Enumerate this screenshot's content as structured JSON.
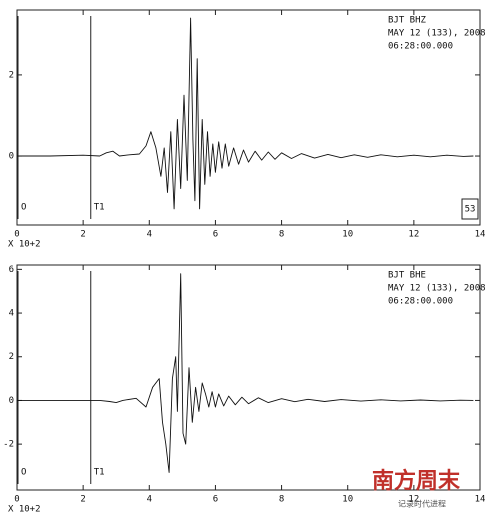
{
  "chart_data": [
    {
      "type": "line",
      "header": [
        "BJT  BHZ",
        "MAY 12 (133), 2008",
        "06:28:00.000"
      ],
      "x_label": "X 10+2",
      "box_label": "53",
      "markers": [
        {
          "label": "O",
          "x": 0
        },
        {
          "label": "T1",
          "x": 2.2
        }
      ],
      "xlim": [
        0,
        14
      ],
      "xticks": [
        0,
        2,
        4,
        6,
        8,
        10,
        12,
        14
      ],
      "ylim": [
        -1.7,
        3.6
      ],
      "yticks": [
        0,
        2
      ],
      "x": [
        0,
        1,
        2,
        2.5,
        2.7,
        2.9,
        3.1,
        3.4,
        3.7,
        3.9,
        4.05,
        4.2,
        4.35,
        4.45,
        4.55,
        4.65,
        4.75,
        4.85,
        4.95,
        5.05,
        5.15,
        5.25,
        5.32,
        5.38,
        5.45,
        5.52,
        5.6,
        5.68,
        5.76,
        5.84,
        5.92,
        6.0,
        6.1,
        6.2,
        6.3,
        6.4,
        6.55,
        6.7,
        6.85,
        7.0,
        7.2,
        7.4,
        7.6,
        7.8,
        8.0,
        8.3,
        8.6,
        9.0,
        9.4,
        9.8,
        10.2,
        10.6,
        11.0,
        11.5,
        12.0,
        12.5,
        13.0,
        13.5,
        13.8
      ],
      "series": [
        {
          "color": "#111111",
          "values": [
            0,
            0,
            0.02,
            0,
            0.08,
            0.12,
            0,
            0.03,
            0.05,
            0.25,
            0.6,
            0.2,
            -0.5,
            0.2,
            -0.9,
            0.6,
            -1.3,
            0.9,
            -0.8,
            1.5,
            -0.6,
            3.4,
            0.4,
            -1.1,
            2.4,
            -1.3,
            0.9,
            -0.7,
            0.6,
            -0.5,
            0.3,
            -0.4,
            0.35,
            -0.3,
            0.3,
            -0.25,
            0.2,
            -0.2,
            0.15,
            -0.15,
            0.12,
            -0.1,
            0.1,
            -0.08,
            0.08,
            -0.06,
            0.06,
            -0.05,
            0.04,
            -0.04,
            0.03,
            -0.03,
            0.03,
            -0.02,
            0.02,
            -0.02,
            0.02,
            -0.01,
            0
          ]
        }
      ]
    },
    {
      "type": "line",
      "header": [
        "BJT  BHE",
        "MAY 12 (133), 2008",
        "06:28:00.000"
      ],
      "x_label": "X 10+2",
      "markers": [
        {
          "label": "O",
          "x": 0
        },
        {
          "label": "T1",
          "x": 2.2
        }
      ],
      "xlim": [
        0,
        14
      ],
      "xticks": [
        0,
        2,
        4,
        6,
        8,
        10,
        12,
        14
      ],
      "ylim": [
        -4.1,
        6.2
      ],
      "yticks": [
        -2,
        0,
        2,
        4,
        6
      ],
      "x": [
        0,
        2,
        2.5,
        2.8,
        3.0,
        3.2,
        3.6,
        3.9,
        4.1,
        4.3,
        4.4,
        4.5,
        4.6,
        4.7,
        4.8,
        4.85,
        4.95,
        5.02,
        5.1,
        5.2,
        5.3,
        5.4,
        5.5,
        5.6,
        5.7,
        5.8,
        5.9,
        6.0,
        6.1,
        6.25,
        6.4,
        6.6,
        6.8,
        7.0,
        7.3,
        7.6,
        8.0,
        8.4,
        8.8,
        9.3,
        9.8,
        10.4,
        11.0,
        11.6,
        12.2,
        12.8,
        13.4,
        13.8
      ],
      "series": [
        {
          "color": "#111111",
          "values": [
            0,
            0,
            0,
            -0.05,
            -0.1,
            0,
            0.1,
            -0.3,
            0.6,
            1.0,
            -1.0,
            -2.0,
            -3.3,
            1.0,
            2.0,
            -0.5,
            5.8,
            -1.5,
            -2.0,
            1.5,
            -1.0,
            0.6,
            -0.5,
            0.8,
            0.3,
            -0.3,
            0.4,
            -0.3,
            0.3,
            -0.25,
            0.2,
            -0.2,
            0.15,
            -0.15,
            0.12,
            -0.1,
            0.08,
            -0.06,
            0.05,
            -0.05,
            0.04,
            -0.03,
            0.03,
            -0.02,
            0.02,
            -0.02,
            0.01,
            0
          ]
        }
      ]
    }
  ],
  "watermark": {
    "title": "南方周末",
    "subtitle": "记录时代进程"
  }
}
